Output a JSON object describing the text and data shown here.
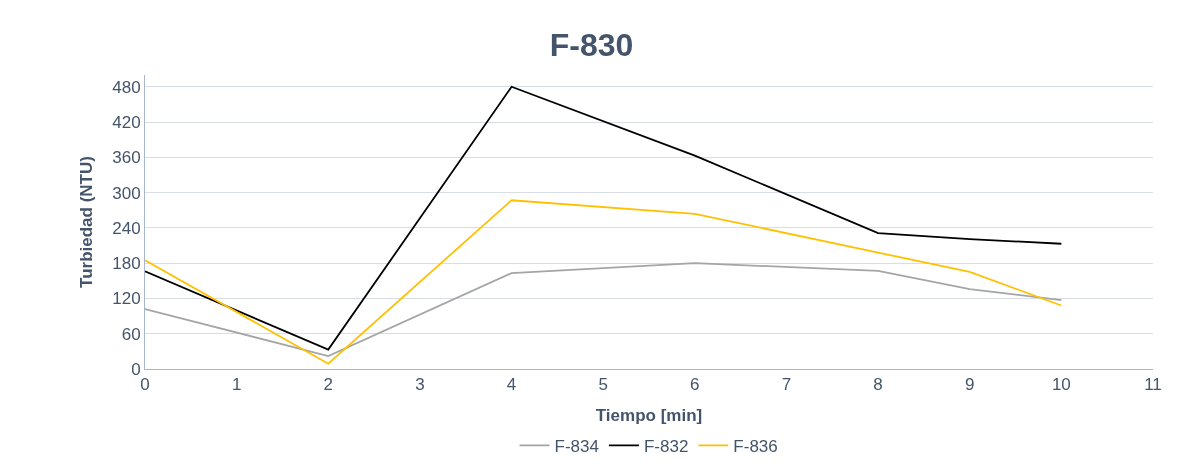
{
  "chart_data": {
    "type": "line",
    "title": "F-830",
    "xlabel": "Tiempo [min]",
    "ylabel": "Turbiedad (NTU)",
    "x": [
      0,
      2,
      4,
      6,
      8,
      9,
      10
    ],
    "series": [
      {
        "name": "F-834",
        "color": "#a5a5a5",
        "values": [
          102,
          22,
          163,
          180,
          167,
          136,
          117
        ]
      },
      {
        "name": "F-832",
        "color": "#000000",
        "values": [
          166,
          33,
          480,
          363,
          231,
          221,
          213
        ]
      },
      {
        "name": "F-836",
        "color": "#ffc000",
        "values": [
          185,
          9,
          287,
          264,
          198,
          165,
          108
        ]
      }
    ],
    "xlim": [
      0,
      11
    ],
    "xticks": [
      0,
      1,
      2,
      3,
      4,
      5,
      6,
      7,
      8,
      9,
      10,
      11
    ],
    "ylim": [
      0,
      500
    ],
    "yticks": [
      0,
      60,
      120,
      180,
      240,
      300,
      360,
      420,
      480
    ],
    "grid": "y",
    "legend": "bottom",
    "marker": "none",
    "line_style": "solid"
  }
}
